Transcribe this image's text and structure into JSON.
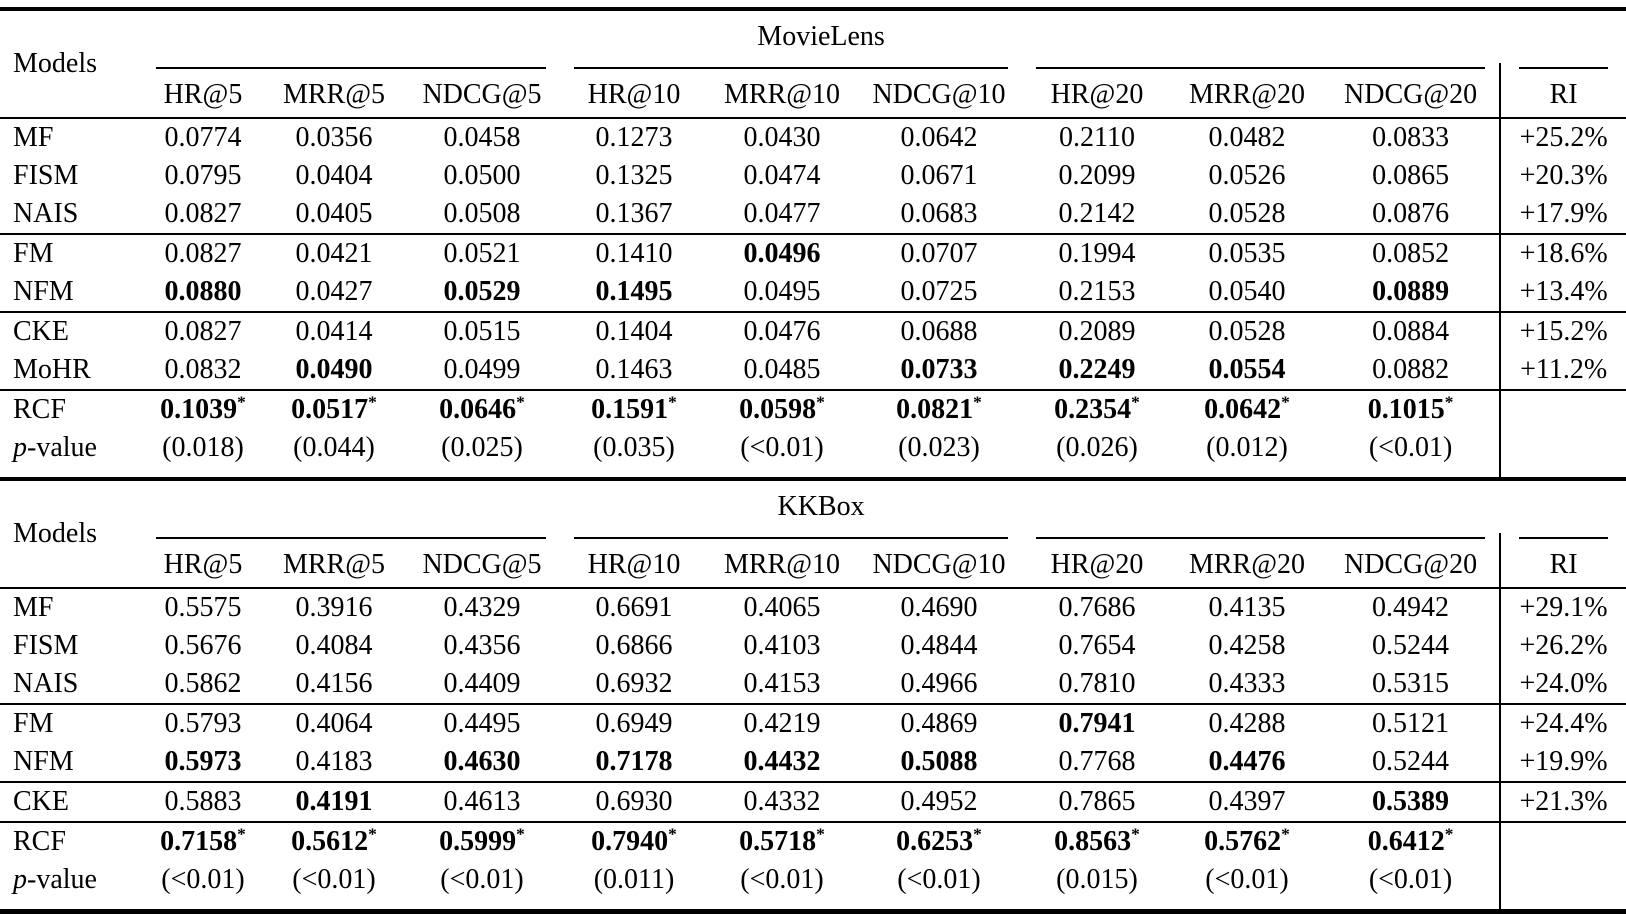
{
  "page": {
    "background": "#ffffff",
    "text_color": "#000000"
  },
  "tables": [
    {
      "dataset": "MovieLens",
      "models_label": "Models",
      "ri_label": "RI",
      "columns": [
        "HR@5",
        "MRR@5",
        "NDCG@5",
        "HR@10",
        "MRR@10",
        "NDCG@10",
        "HR@20",
        "MRR@20",
        "NDCG@20"
      ],
      "rows": [
        {
          "model": "MF",
          "cells": [
            {
              "v": "0.0774"
            },
            {
              "v": "0.0356"
            },
            {
              "v": "0.0458"
            },
            {
              "v": "0.1273"
            },
            {
              "v": "0.0430"
            },
            {
              "v": "0.0642"
            },
            {
              "v": "0.2110"
            },
            {
              "v": "0.0482"
            },
            {
              "v": "0.0833"
            }
          ],
          "ri": "+25.2%",
          "rule_after": false
        },
        {
          "model": "FISM",
          "cells": [
            {
              "v": "0.0795"
            },
            {
              "v": "0.0404"
            },
            {
              "v": "0.0500"
            },
            {
              "v": "0.1325"
            },
            {
              "v": "0.0474"
            },
            {
              "v": "0.0671"
            },
            {
              "v": "0.2099"
            },
            {
              "v": "0.0526"
            },
            {
              "v": "0.0865"
            }
          ],
          "ri": "+20.3%",
          "rule_after": false
        },
        {
          "model": "NAIS",
          "cells": [
            {
              "v": "0.0827"
            },
            {
              "v": "0.0405"
            },
            {
              "v": "0.0508"
            },
            {
              "v": "0.1367"
            },
            {
              "v": "0.0477"
            },
            {
              "v": "0.0683"
            },
            {
              "v": "0.2142"
            },
            {
              "v": "0.0528"
            },
            {
              "v": "0.0876"
            }
          ],
          "ri": "+17.9%",
          "rule_after": true
        },
        {
          "model": "FM",
          "cells": [
            {
              "v": "0.0827"
            },
            {
              "v": "0.0421"
            },
            {
              "v": "0.0521"
            },
            {
              "v": "0.1410"
            },
            {
              "v": "0.0496",
              "b": true
            },
            {
              "v": "0.0707"
            },
            {
              "v": "0.1994"
            },
            {
              "v": "0.0535"
            },
            {
              "v": "0.0852"
            }
          ],
          "ri": "+18.6%",
          "rule_after": false
        },
        {
          "model": "NFM",
          "cells": [
            {
              "v": "0.0880",
              "b": true
            },
            {
              "v": "0.0427"
            },
            {
              "v": "0.0529",
              "b": true
            },
            {
              "v": "0.1495",
              "b": true
            },
            {
              "v": "0.0495"
            },
            {
              "v": "0.0725"
            },
            {
              "v": "0.2153"
            },
            {
              "v": "0.0540"
            },
            {
              "v": "0.0889",
              "b": true
            }
          ],
          "ri": "+13.4%",
          "rule_after": true
        },
        {
          "model": "CKE",
          "cells": [
            {
              "v": "0.0827"
            },
            {
              "v": "0.0414"
            },
            {
              "v": "0.0515"
            },
            {
              "v": "0.1404"
            },
            {
              "v": "0.0476"
            },
            {
              "v": "0.0688"
            },
            {
              "v": "0.2089"
            },
            {
              "v": "0.0528"
            },
            {
              "v": "0.0884"
            }
          ],
          "ri": "+15.2%",
          "rule_after": false
        },
        {
          "model": "MoHR",
          "cells": [
            {
              "v": "0.0832"
            },
            {
              "v": "0.0490",
              "b": true
            },
            {
              "v": "0.0499"
            },
            {
              "v": "0.1463"
            },
            {
              "v": "0.0485"
            },
            {
              "v": "0.0733",
              "b": true
            },
            {
              "v": "0.2249",
              "b": true
            },
            {
              "v": "0.0554",
              "b": true
            },
            {
              "v": "0.0882"
            }
          ],
          "ri": "+11.2%",
          "rule_after": true
        },
        {
          "model": "RCF",
          "cells": [
            {
              "v": "0.1039",
              "b": true,
              "star": true
            },
            {
              "v": "0.0517",
              "b": true,
              "star": true
            },
            {
              "v": "0.0646",
              "b": true,
              "star": true
            },
            {
              "v": "0.1591",
              "b": true,
              "star": true
            },
            {
              "v": "0.0598",
              "b": true,
              "star": true
            },
            {
              "v": "0.0821",
              "b": true,
              "star": true
            },
            {
              "v": "0.2354",
              "b": true,
              "star": true
            },
            {
              "v": "0.0642",
              "b": true,
              "star": true
            },
            {
              "v": "0.1015",
              "b": true,
              "star": true
            }
          ],
          "ri": "",
          "rule_after": false
        },
        {
          "model": "p-value",
          "italic_p": true,
          "cells": [
            {
              "v": "(0.018)"
            },
            {
              "v": "(0.044)"
            },
            {
              "v": "(0.025)"
            },
            {
              "v": "(0.035)"
            },
            {
              "v": "(<0.01)"
            },
            {
              "v": "(0.023)"
            },
            {
              "v": "(0.026)"
            },
            {
              "v": "(0.012)"
            },
            {
              "v": "(<0.01)"
            }
          ],
          "ri": "",
          "rule_after": false
        }
      ]
    },
    {
      "dataset": "KKBox",
      "models_label": "Models",
      "ri_label": "RI",
      "columns": [
        "HR@5",
        "MRR@5",
        "NDCG@5",
        "HR@10",
        "MRR@10",
        "NDCG@10",
        "HR@20",
        "MRR@20",
        "NDCG@20"
      ],
      "rows": [
        {
          "model": "MF",
          "cells": [
            {
              "v": "0.5575"
            },
            {
              "v": "0.3916"
            },
            {
              "v": "0.4329"
            },
            {
              "v": "0.6691"
            },
            {
              "v": "0.4065"
            },
            {
              "v": "0.4690"
            },
            {
              "v": "0.7686"
            },
            {
              "v": "0.4135"
            },
            {
              "v": "0.4942"
            }
          ],
          "ri": "+29.1%",
          "rule_after": false
        },
        {
          "model": "FISM",
          "cells": [
            {
              "v": "0.5676"
            },
            {
              "v": "0.4084"
            },
            {
              "v": "0.4356"
            },
            {
              "v": "0.6866"
            },
            {
              "v": "0.4103"
            },
            {
              "v": "0.4844"
            },
            {
              "v": "0.7654"
            },
            {
              "v": "0.4258"
            },
            {
              "v": "0.5244"
            }
          ],
          "ri": "+26.2%",
          "rule_after": false
        },
        {
          "model": "NAIS",
          "cells": [
            {
              "v": "0.5862"
            },
            {
              "v": "0.4156"
            },
            {
              "v": "0.4409"
            },
            {
              "v": "0.6932"
            },
            {
              "v": "0.4153"
            },
            {
              "v": "0.4966"
            },
            {
              "v": "0.7810"
            },
            {
              "v": "0.4333"
            },
            {
              "v": "0.5315"
            }
          ],
          "ri": "+24.0%",
          "rule_after": true
        },
        {
          "model": "FM",
          "cells": [
            {
              "v": "0.5793"
            },
            {
              "v": "0.4064"
            },
            {
              "v": "0.4495"
            },
            {
              "v": "0.6949"
            },
            {
              "v": "0.4219"
            },
            {
              "v": "0.4869"
            },
            {
              "v": "0.7941",
              "b": true
            },
            {
              "v": "0.4288"
            },
            {
              "v": "0.5121"
            }
          ],
          "ri": "+24.4%",
          "rule_after": false
        },
        {
          "model": "NFM",
          "cells": [
            {
              "v": "0.5973",
              "b": true
            },
            {
              "v": "0.4183"
            },
            {
              "v": "0.4630",
              "b": true
            },
            {
              "v": "0.7178",
              "b": true
            },
            {
              "v": "0.4432",
              "b": true
            },
            {
              "v": "0.5088",
              "b": true
            },
            {
              "v": "0.7768"
            },
            {
              "v": "0.4476",
              "b": true
            },
            {
              "v": "0.5244"
            }
          ],
          "ri": "+19.9%",
          "rule_after": true
        },
        {
          "model": "CKE",
          "cells": [
            {
              "v": "0.5883"
            },
            {
              "v": "0.4191",
              "b": true
            },
            {
              "v": "0.4613"
            },
            {
              "v": "0.6930"
            },
            {
              "v": "0.4332"
            },
            {
              "v": "0.4952"
            },
            {
              "v": "0.7865"
            },
            {
              "v": "0.4397"
            },
            {
              "v": "0.5389",
              "b": true
            }
          ],
          "ri": "+21.3%",
          "rule_after": true
        },
        {
          "model": "RCF",
          "cells": [
            {
              "v": "0.7158",
              "b": true,
              "star": true
            },
            {
              "v": "0.5612",
              "b": true,
              "star": true
            },
            {
              "v": "0.5999",
              "b": true,
              "star": true
            },
            {
              "v": "0.7940",
              "b": true,
              "star": true
            },
            {
              "v": "0.5718",
              "b": true,
              "star": true
            },
            {
              "v": "0.6253",
              "b": true,
              "star": true
            },
            {
              "v": "0.8563",
              "b": true,
              "star": true
            },
            {
              "v": "0.5762",
              "b": true,
              "star": true
            },
            {
              "v": "0.6412",
              "b": true,
              "star": true
            }
          ],
          "ri": "",
          "rule_after": false
        },
        {
          "model": "p-value",
          "italic_p": true,
          "cells": [
            {
              "v": "(<0.01)"
            },
            {
              "v": "(<0.01)"
            },
            {
              "v": "(<0.01)"
            },
            {
              "v": "(0.011)"
            },
            {
              "v": "(<0.01)"
            },
            {
              "v": "(<0.01)"
            },
            {
              "v": "(0.015)"
            },
            {
              "v": "(<0.01)"
            },
            {
              "v": "(<0.01)"
            }
          ],
          "ri": "",
          "rule_after": false
        }
      ]
    }
  ]
}
